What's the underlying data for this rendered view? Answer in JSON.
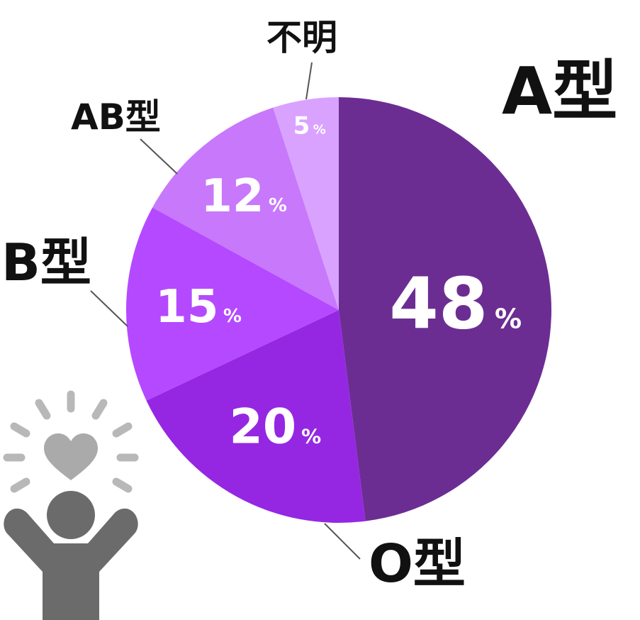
{
  "chart_data": {
    "type": "pie",
    "categories": [
      "A型",
      "O型",
      "B型",
      "AB型",
      "不明"
    ],
    "values": [
      48,
      20,
      15,
      12,
      5
    ],
    "unit": "%",
    "colors": [
      "#6c2d93",
      "#9527e2",
      "#b549ff",
      "#c878fb",
      "#daa2ff"
    ],
    "start": "12 o'clock",
    "direction": "clockwise"
  },
  "icon": {
    "name": "person-cheering-heart-icon",
    "body_color": "#6b6b6b",
    "heart_color": "#aaaaaa",
    "ray_color": "#b8b8b8"
  }
}
